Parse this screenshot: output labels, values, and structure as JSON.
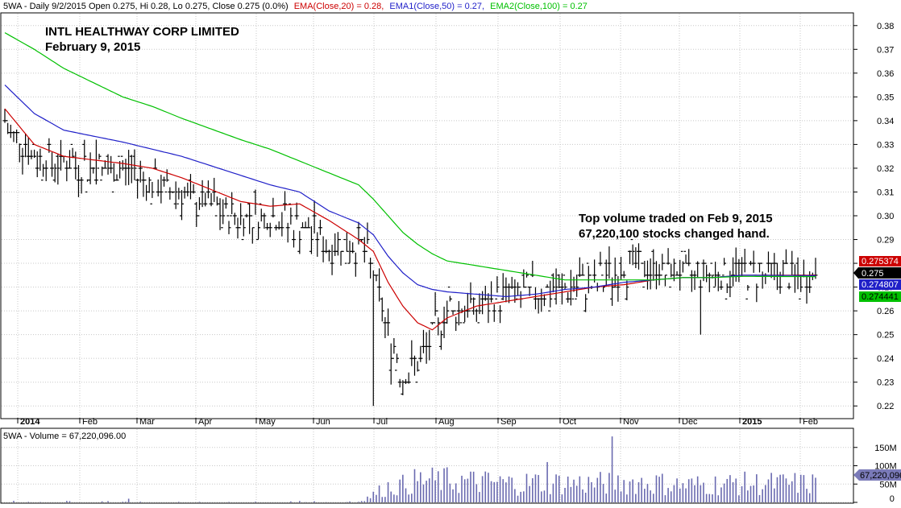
{
  "colors": {
    "ema20": "#cc0000",
    "ema50": "#1f1fc8",
    "ema100": "#00c000",
    "bars": "#000000",
    "volume": "#6a6ab0",
    "grid": "#c8c8c8",
    "title": "#000000"
  },
  "header": {
    "prefix": "5WA - Daily 9/2/2015 Open 0.275, Hi 0.28, Lo 0.275, Close 0.275 (0.0%)",
    "ema20_label": "EMA(Close,20) = 0.28,",
    "ema50_label": "EMA1(Close,50) = 0.27,",
    "ema100_label": "EMA2(Close,100) = 0.27"
  },
  "annotations": {
    "company": "INTL HEALTHWAY CORP LIMITED",
    "date": "February 9, 2015",
    "note_line1": "Top volume traded on Feb 9, 2015",
    "note_line2": "67,220,100 stocks changed hand."
  },
  "volume_header": {
    "prefix": "5WA - ",
    "label": "Volume = 67,220,096.00"
  },
  "tags": {
    "ema20": "0.275374",
    "close": "0.275",
    "ema50": "0.274807",
    "ema100": "0.274441",
    "volume": "67,220,096"
  },
  "chart_data": [
    {
      "type": "ohlc",
      "x_range": [
        "2014-01-02",
        "2015-02-09"
      ],
      "ylim": [
        0.215,
        0.385
      ],
      "y_ticks": [
        "0.22",
        "0.23",
        "0.24",
        "0.25",
        "0.26",
        "0.27",
        "0.28",
        "0.29",
        "0.30",
        "0.31",
        "0.32",
        "0.33",
        "0.34",
        "0.35",
        "0.36",
        "0.37",
        "0.38"
      ],
      "x_ticks": [
        "2014",
        "Feb",
        "Mar",
        "Apr",
        "May",
        "Jun",
        "Jul",
        "Aug",
        "Sep",
        "Oct",
        "Nov",
        "Dec",
        "2015",
        "Feb"
      ],
      "grid": true,
      "series": [
        {
          "name": "EMA(Close,20)",
          "points": [
            [
              0,
              0.345
            ],
            [
              10,
              0.33
            ],
            [
              20,
              0.325
            ],
            [
              40,
              0.322
            ],
            [
              50,
              0.32
            ],
            [
              60,
              0.316
            ],
            [
              80,
              0.306
            ],
            [
              90,
              0.304
            ],
            [
              100,
              0.305
            ],
            [
              110,
              0.298
            ],
            [
              120,
              0.29
            ],
            [
              125,
              0.285
            ],
            [
              130,
              0.272
            ],
            [
              135,
              0.262
            ],
            [
              140,
              0.255
            ],
            [
              145,
              0.252
            ],
            [
              150,
              0.257
            ],
            [
              160,
              0.262
            ],
            [
              170,
              0.264
            ],
            [
              180,
              0.266
            ],
            [
              190,
              0.268
            ],
            [
              200,
              0.27
            ],
            [
              210,
              0.271
            ],
            [
              220,
              0.273
            ],
            [
              230,
              0.274
            ],
            [
              240,
              0.274
            ],
            [
              250,
              0.275
            ],
            [
              275,
              0.275
            ]
          ]
        },
        {
          "name": "EMA1(Close,50)",
          "points": [
            [
              0,
              0.355
            ],
            [
              10,
              0.343
            ],
            [
              20,
              0.336
            ],
            [
              40,
              0.331
            ],
            [
              50,
              0.328
            ],
            [
              60,
              0.325
            ],
            [
              80,
              0.317
            ],
            [
              90,
              0.313
            ],
            [
              100,
              0.31
            ],
            [
              110,
              0.302
            ],
            [
              120,
              0.297
            ],
            [
              125,
              0.292
            ],
            [
              130,
              0.283
            ],
            [
              135,
              0.276
            ],
            [
              140,
              0.271
            ],
            [
              145,
              0.269
            ],
            [
              150,
              0.268
            ],
            [
              170,
              0.266
            ],
            [
              180,
              0.267
            ],
            [
              190,
              0.269
            ],
            [
              200,
              0.27
            ],
            [
              210,
              0.272
            ],
            [
              220,
              0.273
            ],
            [
              230,
              0.274
            ],
            [
              240,
              0.274
            ],
            [
              250,
              0.275
            ],
            [
              275,
              0.2748
            ]
          ]
        },
        {
          "name": "EMA2(Close,100)",
          "points": [
            [
              0,
              0.377
            ],
            [
              10,
              0.37
            ],
            [
              20,
              0.362
            ],
            [
              40,
              0.35
            ],
            [
              50,
              0.346
            ],
            [
              60,
              0.341
            ],
            [
              80,
              0.332
            ],
            [
              90,
              0.328
            ],
            [
              100,
              0.323
            ],
            [
              110,
              0.318
            ],
            [
              120,
              0.313
            ],
            [
              125,
              0.307
            ],
            [
              130,
              0.3
            ],
            [
              135,
              0.293
            ],
            [
              140,
              0.288
            ],
            [
              145,
              0.284
            ],
            [
              150,
              0.281
            ],
            [
              170,
              0.277
            ],
            [
              180,
              0.275
            ],
            [
              190,
              0.273
            ],
            [
              200,
              0.273
            ],
            [
              210,
              0.273
            ],
            [
              220,
              0.273
            ],
            [
              230,
              0.274
            ],
            [
              240,
              0.274
            ],
            [
              250,
              0.2745
            ],
            [
              275,
              0.2744
            ]
          ]
        }
      ],
      "ohlc_knots": [
        [
          0,
          0.338
        ],
        [
          10,
          0.325
        ],
        [
          20,
          0.322
        ],
        [
          40,
          0.319
        ],
        [
          50,
          0.315
        ],
        [
          60,
          0.309
        ],
        [
          80,
          0.3
        ],
        [
          90,
          0.3
        ],
        [
          100,
          0.296
        ],
        [
          110,
          0.288
        ],
        [
          120,
          0.288
        ],
        [
          123,
          0.285
        ],
        [
          126,
          0.27
        ],
        [
          129,
          0.255
        ],
        [
          132,
          0.243
        ],
        [
          135,
          0.232
        ],
        [
          138,
          0.235
        ],
        [
          141,
          0.24
        ],
        [
          145,
          0.25
        ],
        [
          150,
          0.26
        ],
        [
          160,
          0.262
        ],
        [
          170,
          0.267
        ],
        [
          180,
          0.268
        ],
        [
          190,
          0.27
        ],
        [
          200,
          0.272
        ],
        [
          210,
          0.278
        ],
        [
          220,
          0.278
        ],
        [
          230,
          0.276
        ],
        [
          240,
          0.275
        ],
        [
          250,
          0.277
        ],
        [
          260,
          0.275
        ],
        [
          275,
          0.275
        ]
      ],
      "ohlc_low_spikes": [
        [
          125,
          0.22
        ],
        [
          236,
          0.25
        ],
        [
          131,
          0.229
        ]
      ],
      "ohlc_high_spikes": [
        [
          0,
          0.345
        ],
        [
          223,
          0.284
        ],
        [
          31,
          0.332
        ]
      ]
    },
    {
      "type": "bar",
      "name": "Volume",
      "ylim": [
        0,
        200000000
      ],
      "y_ticks": [
        "0",
        "50M",
        "100M",
        "150M"
      ],
      "last_value": 67220096,
      "volume_knots": [
        [
          0,
          0.5
        ],
        [
          120,
          2
        ],
        [
          125,
          25
        ],
        [
          130,
          50
        ],
        [
          135,
          55
        ],
        [
          140,
          70
        ],
        [
          150,
          70
        ],
        [
          175,
          60
        ],
        [
          180,
          65
        ],
        [
          200,
          60
        ],
        [
          215,
          65
        ],
        [
          230,
          55
        ],
        [
          250,
          60
        ],
        [
          275,
          60
        ]
      ],
      "volume_spikes": [
        [
          42,
          10
        ],
        [
          206,
          180
        ],
        [
          184,
          110
        ],
        [
          222,
          70
        ],
        [
          248,
          65
        ]
      ]
    }
  ]
}
